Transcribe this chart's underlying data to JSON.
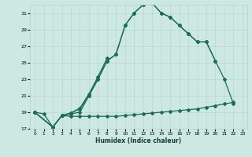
{
  "xlabel": "Humidex (Indice chaleur)",
  "xlim": [
    0,
    23
  ],
  "ylim": [
    17,
    32
  ],
  "yticks": [
    17,
    19,
    21,
    23,
    25,
    27,
    29,
    31
  ],
  "xticks": [
    0,
    1,
    2,
    3,
    4,
    5,
    6,
    7,
    8,
    9,
    10,
    11,
    12,
    13,
    14,
    15,
    16,
    17,
    18,
    19,
    20,
    21,
    22,
    23
  ],
  "bg_color": "#cce8e0",
  "grid_color": "#b0d4cc",
  "line_color": "#1a6b5a",
  "line1_x": [
    0,
    1,
    2,
    3,
    4,
    5,
    6,
    7,
    8,
    9,
    10,
    11,
    12,
    13,
    14,
    15,
    16,
    17,
    18,
    19,
    20,
    21,
    22
  ],
  "line1_y": [
    19,
    18.8,
    17.2,
    18.6,
    18.5,
    18.5,
    18.5,
    18.5,
    18.5,
    18.5,
    18.6,
    18.7,
    18.8,
    18.9,
    19.0,
    19.1,
    19.2,
    19.3,
    19.4,
    19.6,
    19.8,
    20.0,
    20.2
  ],
  "line2_x": [
    0,
    2,
    3,
    4,
    5,
    6,
    7,
    8,
    9,
    10,
    11,
    12,
    13,
    14,
    15,
    16,
    17,
    18,
    19,
    20,
    21,
    22
  ],
  "line2_y": [
    19,
    17.2,
    18.6,
    18.8,
    19.0,
    21.0,
    23.0,
    25.2,
    26.0,
    29.5,
    31.0,
    32.0,
    32.2,
    31.0,
    30.5,
    29.5,
    28.5,
    27.5,
    27.5,
    25.2,
    23.0,
    20.0
  ],
  "line3_x": [
    0,
    2,
    3,
    4,
    5,
    6,
    7,
    8,
    9,
    10,
    11,
    12,
    13,
    14,
    15,
    16,
    17,
    18,
    19,
    20
  ],
  "line3_y": [
    19,
    17.2,
    18.6,
    18.9,
    19.4,
    21.0,
    23.0,
    25.2,
    26.0,
    29.5,
    31.0,
    32.0,
    32.2,
    31.0,
    30.5,
    29.5,
    28.5,
    27.5,
    27.5,
    25.2
  ],
  "line4_x": [
    0,
    2,
    3,
    4,
    5,
    6,
    7,
    8
  ],
  "line4_y": [
    19,
    17.2,
    18.6,
    18.9,
    19.5,
    21.2,
    23.3,
    25.5
  ]
}
